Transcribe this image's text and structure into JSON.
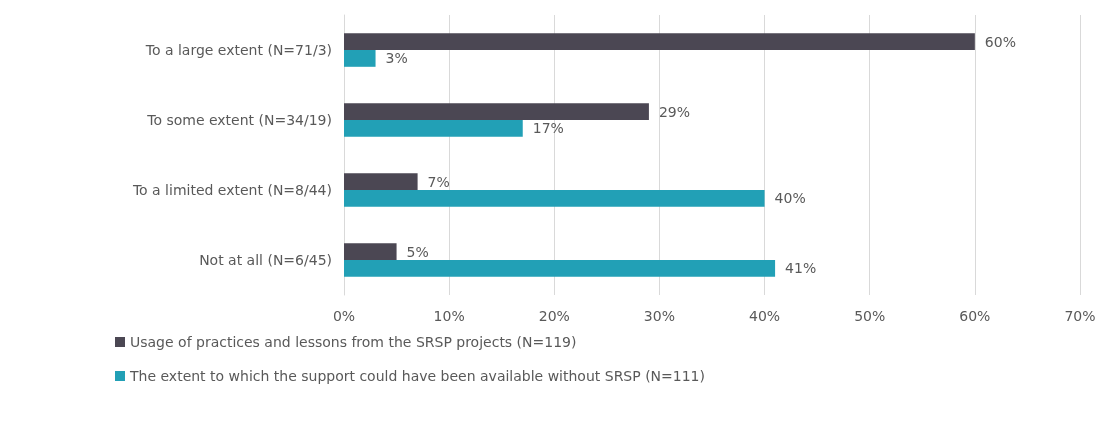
{
  "chart_data": {
    "type": "bar",
    "orientation": "horizontal",
    "categories": [
      "To a large extent (N=71/3)",
      "To some extent (N=34/19)",
      "To a limited extent (N=8/44)",
      "Not at all (N=6/45)"
    ],
    "series": [
      {
        "name": "Usage of practices and lessons from the SRSP projects (N=119)",
        "color": "#4b4753",
        "values": [
          60,
          29,
          7,
          5
        ],
        "value_labels": [
          "60%",
          "29%",
          "7%",
          "5%"
        ]
      },
      {
        "name": "The extent to which the support could have been available without SRSP (N=111)",
        "color": "#22a0b6",
        "values": [
          3,
          17,
          40,
          41
        ],
        "value_labels": [
          "3%",
          "17%",
          "40%",
          "41%"
        ]
      }
    ],
    "xlim": [
      0,
      70
    ],
    "xticks": [
      {
        "value": 0,
        "label": "0%"
      },
      {
        "value": 10,
        "label": "10%"
      },
      {
        "value": 20,
        "label": "20%"
      },
      {
        "value": 30,
        "label": "30%"
      },
      {
        "value": 40,
        "label": "40%"
      },
      {
        "value": 50,
        "label": "50%"
      },
      {
        "value": 60,
        "label": "60%"
      },
      {
        "value": 70,
        "label": "70%"
      }
    ],
    "grid": "x",
    "legend": "bottom"
  }
}
